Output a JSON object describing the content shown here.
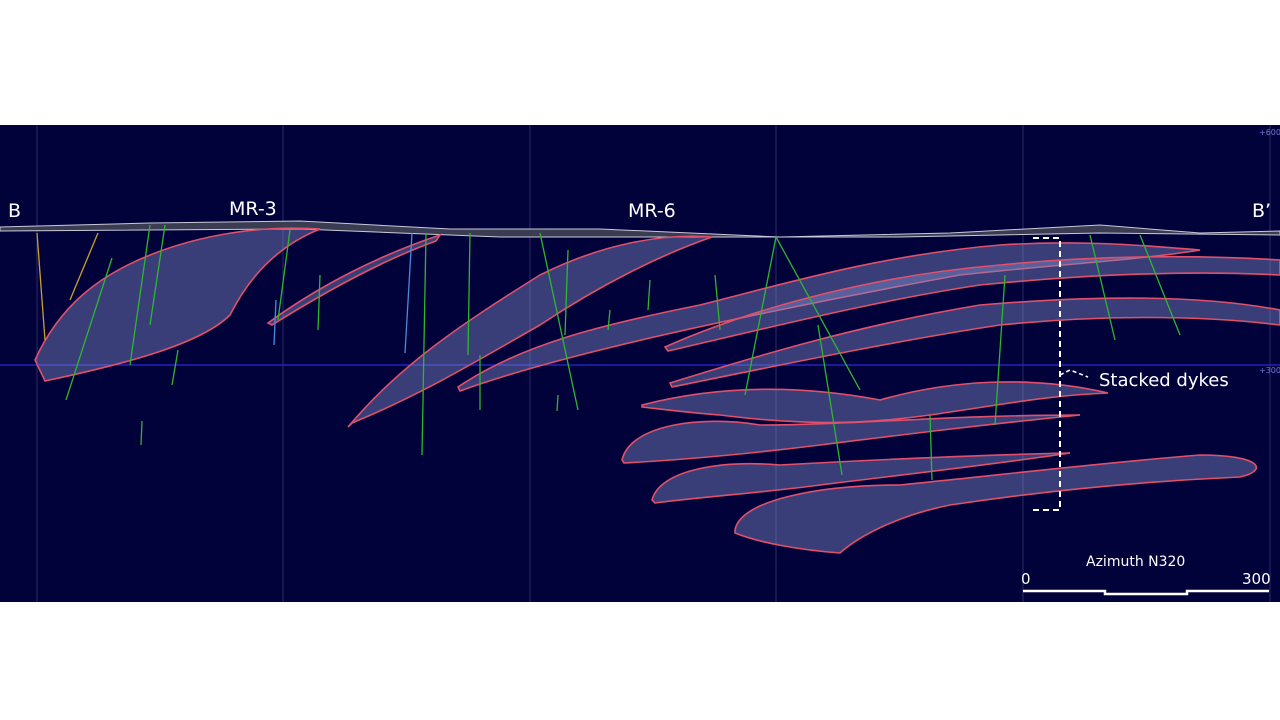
{
  "section": {
    "start_label": "B",
    "end_label": "B’",
    "drillholes": [
      "MR-3",
      "MR-6"
    ],
    "elevation_ticks": [
      "+600",
      "+300"
    ],
    "annotation": "Stacked dykes",
    "scale_bar": {
      "title": "Azimuth N320",
      "min": "0",
      "max": "300"
    }
  },
  "colors": {
    "background": "#02023a",
    "dyke_outline": "#e0506a",
    "dyke_fill": "#7d87c8",
    "drillhole": "#2fb52f",
    "elevation_line": "#2a2ad8"
  }
}
